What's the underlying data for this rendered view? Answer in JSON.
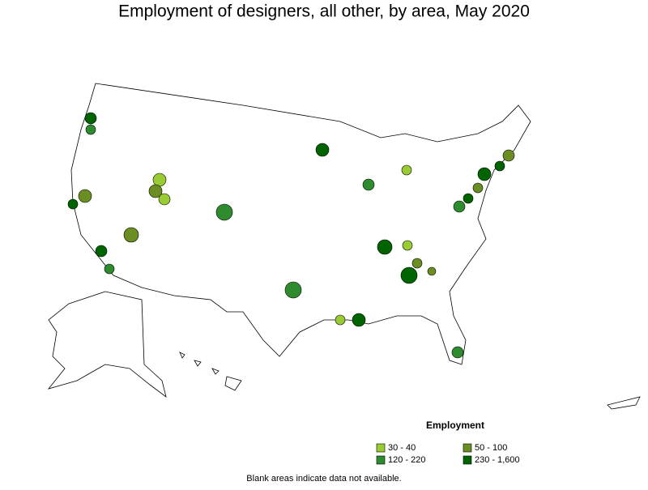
{
  "title": "Employment of designers, all other, by area, May 2020",
  "legend": {
    "title": "Employment",
    "items": [
      {
        "label": "30 - 40",
        "color": "#99cc33"
      },
      {
        "label": "50 - 100",
        "color": "#6b8e23"
      },
      {
        "label": "120 - 220",
        "color": "#2e8b2e"
      },
      {
        "label": "230 - 1,600",
        "color": "#006400"
      }
    ]
  },
  "note": "Blank areas indicate data not available."
}
